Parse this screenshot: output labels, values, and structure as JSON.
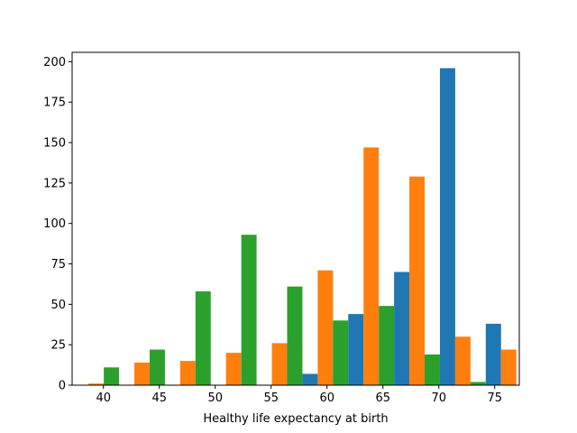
{
  "chart_data": {
    "type": "bar",
    "title": "",
    "xlabel": "Healthy life expectancy at birth",
    "ylabel": "",
    "xlim": [
      37.2,
      77.2
    ],
    "ylim": [
      0,
      205.8
    ],
    "xticks": [
      40,
      45,
      50,
      55,
      60,
      65,
      70,
      75
    ],
    "yticks": [
      0,
      25,
      50,
      75,
      100,
      125,
      150,
      175,
      200
    ],
    "grid": false,
    "legend": "none",
    "colors": [
      "#1f77b4",
      "#ff7f0e",
      "#2ca02c"
    ],
    "bins": [
      {
        "x": 39.35,
        "values": [
          0,
          1,
          11
        ]
      },
      {
        "x": 43.45,
        "values": [
          0,
          14,
          22
        ]
      },
      {
        "x": 47.55,
        "values": [
          0,
          15,
          58
        ]
      },
      {
        "x": 51.65,
        "values": [
          0,
          20,
          93
        ]
      },
      {
        "x": 55.75,
        "values": [
          0,
          26,
          61
        ]
      },
      {
        "x": 59.85,
        "values": [
          7,
          71,
          40
        ]
      },
      {
        "x": 63.95,
        "values": [
          44,
          147,
          49
        ]
      },
      {
        "x": 68.05,
        "values": [
          70,
          129,
          19
        ]
      },
      {
        "x": 72.15,
        "values": [
          196,
          30,
          2
        ]
      },
      {
        "x": 76.25,
        "values": [
          38,
          22,
          0
        ]
      }
    ],
    "bin_width": 4.1,
    "series": [
      {
        "values": [
          0,
          0,
          0,
          0,
          0,
          7,
          44,
          70,
          196,
          38
        ]
      },
      {
        "values": [
          1,
          14,
          15,
          20,
          26,
          71,
          147,
          129,
          30,
          22
        ]
      },
      {
        "values": [
          11,
          22,
          58,
          93,
          61,
          40,
          49,
          19,
          2,
          0
        ]
      }
    ]
  }
}
